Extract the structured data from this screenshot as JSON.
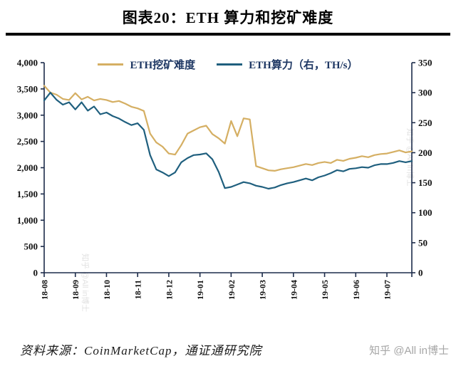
{
  "header": {
    "title": "图表20：ETH 算力和挖矿难度"
  },
  "footer": {
    "source": "资料来源：CoinMarketCap，通证通研究院",
    "watermark": "知乎 @All in博士"
  },
  "colors": {
    "difficulty": "#d5af63",
    "hashrate": "#1f5f7e",
    "axis": "#1c2b4a",
    "rule": "#000000",
    "legend_text": "#1f3864",
    "watermark": "#a6a6a6"
  },
  "chart_data": {
    "type": "line",
    "title": "图表20：ETH 算力和挖矿难度",
    "grid": false,
    "legend_position": "top",
    "x_labels": [
      "18-08",
      "18-09",
      "18-10",
      "18-11",
      "18-12",
      "19-01",
      "19-02",
      "19-03",
      "19-04",
      "19-05",
      "19-06",
      "19-07"
    ],
    "left_axis": {
      "min": 0,
      "max": 4000,
      "step": 500
    },
    "right_axis": {
      "min": 0,
      "max": 350,
      "step": 50
    },
    "series": [
      {
        "name": "ETH挖矿难度",
        "axis": "left",
        "color": "#d5af63",
        "values": [
          3560,
          3430,
          3390,
          3310,
          3290,
          3420,
          3300,
          3350,
          3280,
          3310,
          3290,
          3250,
          3270,
          3220,
          3160,
          3130,
          3080,
          2650,
          2480,
          2400,
          2270,
          2250,
          2430,
          2650,
          2710,
          2770,
          2800,
          2640,
          2560,
          2460,
          2890,
          2600,
          2940,
          2920,
          2030,
          1990,
          1950,
          1940,
          1970,
          1990,
          2010,
          2040,
          2070,
          2050,
          2090,
          2110,
          2090,
          2150,
          2130,
          2170,
          2190,
          2220,
          2200,
          2240,
          2260,
          2270,
          2300,
          2330,
          2290,
          2310
        ]
      },
      {
        "name": "ETH算力（右，TH/s）",
        "axis": "right",
        "color": "#1f5f7e",
        "values": [
          287,
          300,
          288,
          280,
          284,
          272,
          284,
          270,
          277,
          264,
          267,
          261,
          257,
          251,
          246,
          249,
          238,
          196,
          172,
          167,
          161,
          167,
          184,
          191,
          196,
          197,
          199,
          189,
          168,
          141,
          143,
          147,
          151,
          149,
          145,
          143,
          140,
          142,
          146,
          149,
          151,
          154,
          157,
          154,
          159,
          162,
          166,
          171,
          169,
          173,
          174,
          176,
          175,
          179,
          181,
          181,
          183,
          186,
          184,
          186
        ]
      }
    ]
  }
}
